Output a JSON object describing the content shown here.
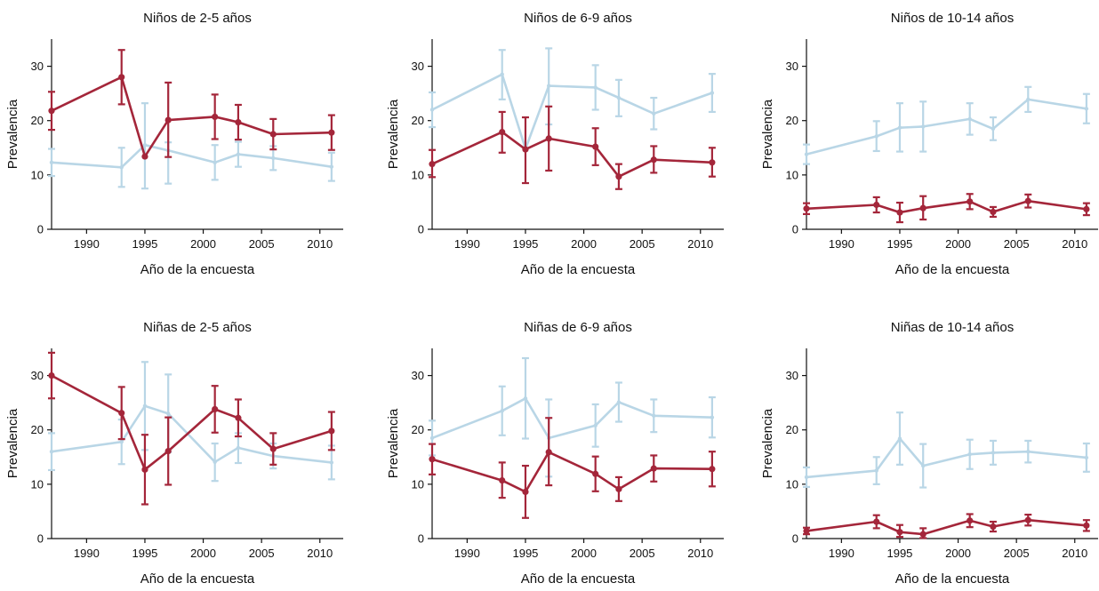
{
  "colors": {
    "red": "#a4263a",
    "blue": "#b9d6e6",
    "axis": "#111111"
  },
  "chart_data": [
    {
      "type": "line",
      "title": "Niños de 2-5 años",
      "xlabel": "Año de la encuesta",
      "ylabel": "Prevalencia",
      "xlim": [
        1987,
        2012
      ],
      "ylim": [
        0,
        35
      ],
      "xticks": [
        1990,
        1995,
        2000,
        2005,
        2010
      ],
      "yticks": [
        0,
        10,
        20,
        30
      ],
      "series": [
        {
          "color": "blue",
          "x": [
            1987,
            1993,
            1995,
            1997,
            2001,
            2003,
            2006,
            2011
          ],
          "y": [
            12.3,
            11.4,
            15.5,
            14.5,
            12.3,
            13.8,
            13.1,
            11.5
          ],
          "lo": [
            9.8,
            7.8,
            7.5,
            8.4,
            9.1,
            11.5,
            10.9,
            8.9
          ],
          "hi": [
            14.8,
            15.0,
            23.2,
            16.0,
            15.5,
            16.1,
            15.3,
            14.1
          ]
        },
        {
          "color": "red",
          "x": [
            1987,
            1993,
            1995,
            1997,
            2001,
            2003,
            2006,
            2011
          ],
          "y": [
            21.8,
            28.0,
            13.4,
            20.1,
            20.7,
            19.7,
            17.5,
            17.8
          ],
          "lo": [
            18.3,
            23.0,
            13.4,
            13.3,
            16.6,
            16.5,
            14.7,
            14.6
          ],
          "hi": [
            25.3,
            33.0,
            13.4,
            27.0,
            24.8,
            22.9,
            20.3,
            21.0
          ]
        }
      ]
    },
    {
      "type": "line",
      "title": "Niños de 6-9 años",
      "xlabel": "Año de la encuesta",
      "ylabel": "Prevalencia",
      "xlim": [
        1987,
        2012
      ],
      "ylim": [
        0,
        35
      ],
      "xticks": [
        1990,
        1995,
        2000,
        2005,
        2010
      ],
      "yticks": [
        0,
        10,
        20,
        30
      ],
      "series": [
        {
          "color": "blue",
          "x": [
            1987,
            1993,
            1995,
            1997,
            2001,
            2003,
            2006,
            2011
          ],
          "y": [
            22.0,
            28.5,
            14.8,
            26.4,
            26.1,
            24.2,
            21.3,
            25.1
          ],
          "lo": [
            18.8,
            23.9,
            14.8,
            19.3,
            22.0,
            20.8,
            18.4,
            21.6
          ],
          "hi": [
            25.2,
            33.0,
            14.8,
            33.3,
            30.2,
            27.5,
            24.2,
            28.6
          ]
        },
        {
          "color": "red",
          "x": [
            1987,
            1993,
            1995,
            1997,
            2001,
            2003,
            2006,
            2011
          ],
          "y": [
            12.0,
            17.9,
            14.7,
            16.7,
            15.2,
            9.7,
            12.8,
            12.3
          ],
          "lo": [
            9.6,
            14.1,
            8.5,
            10.8,
            11.8,
            7.4,
            10.4,
            9.7
          ],
          "hi": [
            14.6,
            21.6,
            20.6,
            22.6,
            18.6,
            12.0,
            15.3,
            15.0
          ]
        }
      ]
    },
    {
      "type": "line",
      "title": "Niños de 10-14 años",
      "xlabel": "Año de la encuesta",
      "ylabel": "Prevalencia",
      "xlim": [
        1987,
        2012
      ],
      "ylim": [
        0,
        35
      ],
      "xticks": [
        1990,
        1995,
        2000,
        2005,
        2010
      ],
      "yticks": [
        0,
        10,
        20,
        30
      ],
      "series": [
        {
          "color": "blue",
          "x": [
            1987,
            1993,
            1995,
            1997,
            2001,
            2003,
            2006,
            2011
          ],
          "y": [
            13.8,
            17.1,
            18.7,
            18.9,
            20.3,
            18.5,
            23.9,
            22.2
          ],
          "lo": [
            12.0,
            14.4,
            14.3,
            14.3,
            17.4,
            16.4,
            21.6,
            19.5
          ],
          "hi": [
            15.6,
            19.9,
            23.2,
            23.5,
            23.2,
            20.6,
            26.2,
            24.9
          ]
        },
        {
          "color": "red",
          "x": [
            1987,
            1993,
            1995,
            1997,
            2001,
            2003,
            2006,
            2011
          ],
          "y": [
            3.8,
            4.5,
            3.1,
            3.9,
            5.1,
            3.2,
            5.2,
            3.7
          ],
          "lo": [
            2.8,
            3.1,
            1.3,
            1.8,
            3.7,
            2.3,
            4.0,
            2.6
          ],
          "hi": [
            4.8,
            5.9,
            4.9,
            6.1,
            6.5,
            4.1,
            6.4,
            4.8
          ]
        }
      ]
    },
    {
      "type": "line",
      "title": "Niñas de 2-5 años",
      "xlabel": "Año de la encuesta",
      "ylabel": "Prevalencia",
      "xlim": [
        1987,
        2012
      ],
      "ylim": [
        0,
        35
      ],
      "xticks": [
        1990,
        1995,
        2000,
        2005,
        2010
      ],
      "yticks": [
        0,
        10,
        20,
        30
      ],
      "series": [
        {
          "color": "blue",
          "x": [
            1987,
            1993,
            1995,
            1997,
            2001,
            2003,
            2006,
            2011
          ],
          "y": [
            16.0,
            17.8,
            24.4,
            23.0,
            14.1,
            16.7,
            15.2,
            14.0
          ],
          "lo": [
            12.6,
            13.7,
            16.3,
            15.9,
            10.6,
            13.9,
            12.9,
            10.9
          ],
          "hi": [
            19.4,
            21.9,
            32.5,
            30.2,
            17.5,
            19.4,
            17.5,
            17.1
          ]
        },
        {
          "color": "red",
          "x": [
            1987,
            1993,
            1995,
            1997,
            2001,
            2003,
            2006,
            2011
          ],
          "y": [
            30.0,
            23.1,
            12.7,
            16.1,
            23.8,
            22.2,
            16.5,
            19.8
          ],
          "lo": [
            25.8,
            18.3,
            6.3,
            9.9,
            19.5,
            18.8,
            13.6,
            16.3
          ],
          "hi": [
            34.2,
            27.9,
            19.1,
            22.3,
            28.1,
            25.6,
            19.4,
            23.3
          ]
        }
      ]
    },
    {
      "type": "line",
      "title": "Niñas de 6-9 años",
      "xlabel": "Año de la encuesta",
      "ylabel": "Prevalencia",
      "xlim": [
        1987,
        2012
      ],
      "ylim": [
        0,
        35
      ],
      "xticks": [
        1990,
        1995,
        2000,
        2005,
        2010
      ],
      "yticks": [
        0,
        10,
        20,
        30
      ],
      "series": [
        {
          "color": "blue",
          "x": [
            1987,
            1993,
            1995,
            1997,
            2001,
            2003,
            2006,
            2011
          ],
          "y": [
            18.5,
            23.5,
            25.8,
            18.5,
            20.8,
            25.1,
            22.6,
            22.3
          ],
          "lo": [
            15.3,
            19.0,
            18.4,
            11.4,
            16.9,
            21.5,
            19.6,
            18.6
          ],
          "hi": [
            21.7,
            28.0,
            33.2,
            25.6,
            24.7,
            28.7,
            25.6,
            26.0
          ]
        },
        {
          "color": "red",
          "x": [
            1987,
            1993,
            1995,
            1997,
            2001,
            2003,
            2006,
            2011
          ],
          "y": [
            14.6,
            10.7,
            8.6,
            15.9,
            11.9,
            9.1,
            12.9,
            12.8
          ],
          "lo": [
            11.8,
            7.5,
            3.8,
            9.8,
            8.7,
            6.9,
            10.5,
            9.6
          ],
          "hi": [
            17.4,
            14.0,
            13.4,
            22.2,
            15.1,
            11.3,
            15.3,
            16.0
          ]
        }
      ]
    },
    {
      "type": "line",
      "title": "Niñas de 10-14 años",
      "xlabel": "Año de la encuesta",
      "ylabel": "Prevalencia",
      "xlim": [
        1987,
        2012
      ],
      "ylim": [
        0,
        35
      ],
      "xticks": [
        1990,
        1995,
        2000,
        2005,
        2010
      ],
      "yticks": [
        0,
        10,
        20,
        30
      ],
      "series": [
        {
          "color": "blue",
          "x": [
            1987,
            1993,
            1995,
            1997,
            2001,
            2003,
            2006,
            2011
          ],
          "y": [
            11.3,
            12.5,
            18.4,
            13.4,
            15.5,
            15.8,
            16.0,
            14.9
          ],
          "lo": [
            9.5,
            10.0,
            13.6,
            9.4,
            12.8,
            13.6,
            14.0,
            12.3
          ],
          "hi": [
            13.1,
            15.0,
            23.2,
            17.4,
            18.2,
            18.0,
            18.0,
            17.5
          ]
        },
        {
          "color": "red",
          "x": [
            1987,
            1993,
            1995,
            1997,
            2001,
            2003,
            2006,
            2011
          ],
          "y": [
            1.4,
            3.1,
            1.2,
            0.8,
            3.3,
            2.2,
            3.4,
            2.4
          ],
          "lo": [
            0.8,
            1.9,
            0.3,
            0.1,
            2.1,
            1.3,
            2.4,
            1.4
          ],
          "hi": [
            2.0,
            4.3,
            2.5,
            1.9,
            4.5,
            3.1,
            4.4,
            3.4
          ]
        }
      ]
    }
  ]
}
